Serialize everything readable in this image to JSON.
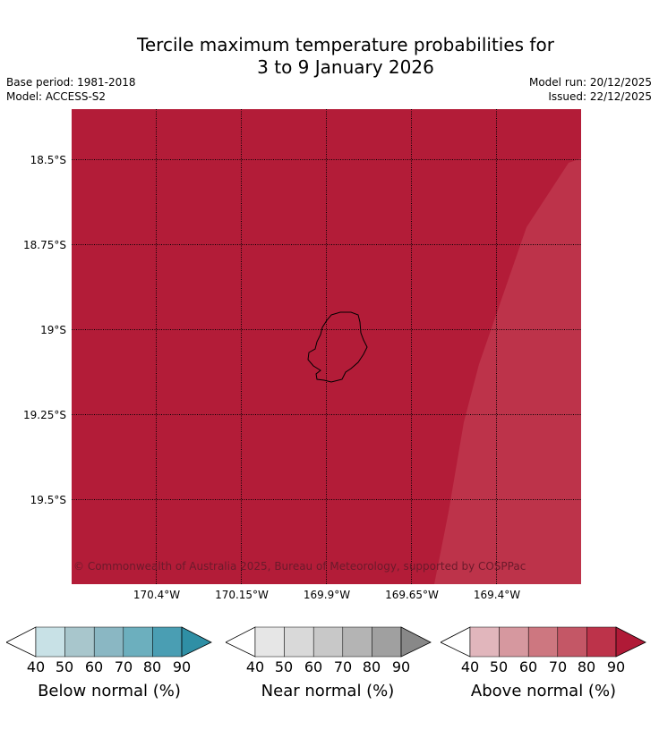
{
  "header": {
    "title_line1": "Tercile maximum temperature probabilities for",
    "title_line2": "3 to 9 January 2026",
    "base_period": "Base period: 1981-2018",
    "model": "Model: ACCESS-S2",
    "model_run": "Model run: 20/12/2025",
    "issued": "Issued: 22/12/2025"
  },
  "map": {
    "latitude_labels": [
      "18.5°S",
      "18.75°S",
      "19°S",
      "19.25°S",
      "19.5°S"
    ],
    "longitude_labels": [
      "170.4°W",
      "170.15°W",
      "169.9°W",
      "169.65°W",
      "169.4°W"
    ],
    "fill_color_main": "#b31c38",
    "fill_color_east": "#bd334a",
    "copyright": "© Commonwealth of Australia 2025, Bureau of Meteorology, supported by COSPPac"
  },
  "colorbars": [
    {
      "name": "Below normal (%)",
      "ticks": [
        "40",
        "50",
        "60",
        "70",
        "80",
        "90"
      ],
      "colors": [
        "#ffffff",
        "#c8e1e6",
        "#a8c6cc",
        "#8ab7c3",
        "#6cafbe",
        "#4a9eb3",
        "#2f8fa5"
      ]
    },
    {
      "name": "Near normal (%)",
      "ticks": [
        "40",
        "50",
        "60",
        "70",
        "80",
        "90"
      ],
      "colors": [
        "#ffffff",
        "#e6e6e6",
        "#d9d9d9",
        "#c8c8c8",
        "#b4b4b4",
        "#a0a0a0",
        "#888888"
      ]
    },
    {
      "name": "Above normal (%)",
      "ticks": [
        "40",
        "50",
        "60",
        "70",
        "80",
        "90"
      ],
      "colors": [
        "#ffffff",
        "#e1b6bc",
        "#d6989f",
        "#cd7780",
        "#c45766",
        "#bd334a",
        "#b01a37"
      ]
    }
  ]
}
